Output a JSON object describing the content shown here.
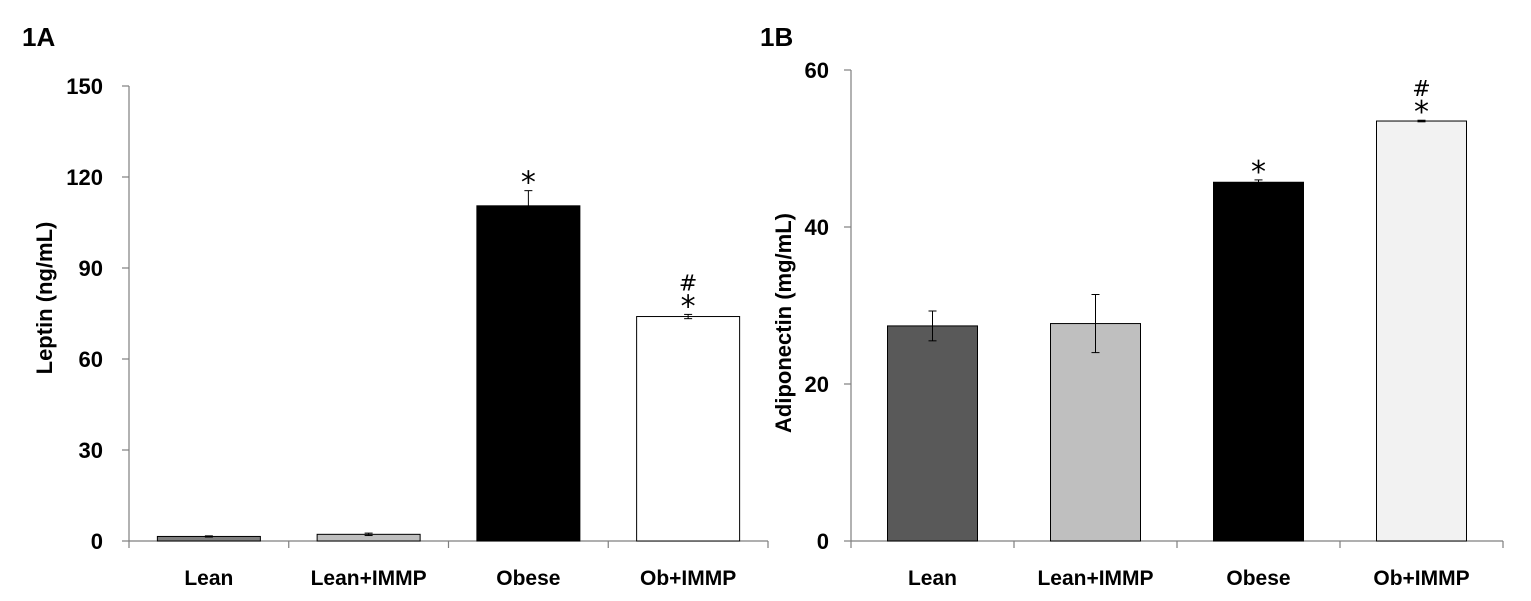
{
  "chart_data": [
    {
      "panel": "1A",
      "type": "bar",
      "ylabel": "Leptin (ng/mL)",
      "xlabel": "",
      "ylim": [
        0,
        150
      ],
      "yticks": [
        0,
        30,
        60,
        90,
        120,
        150
      ],
      "categories": [
        "Lean",
        "Lean+IMMP",
        "Obese",
        "Ob+IMMP"
      ],
      "values": [
        1.5,
        2.2,
        110.5,
        74.0
      ],
      "errors": [
        0.2,
        0.4,
        5.0,
        0.7
      ],
      "colors": [
        "#7f7f7f",
        "#bfbfbf",
        "#000000",
        "#ffffff"
      ],
      "annotations": [
        "",
        "",
        "*",
        "*#"
      ],
      "grid": false,
      "legend": "none"
    },
    {
      "panel": "1B",
      "type": "bar",
      "ylabel": "Adiponectin (mg/mL)",
      "xlabel": "",
      "ylim": [
        0,
        60
      ],
      "yticks": [
        0,
        20,
        40,
        60
      ],
      "categories": [
        "Lean",
        "Lean+IMMP",
        "Obese",
        "Ob+IMMP"
      ],
      "values": [
        27.4,
        27.7,
        45.7,
        53.5
      ],
      "errors": [
        1.9,
        3.7,
        0.3,
        0.1
      ],
      "colors": [
        "#595959",
        "#bfbfbf",
        "#000000",
        "#f2f2f2"
      ],
      "annotations": [
        "",
        "",
        "*",
        "*#"
      ],
      "grid": false,
      "legend": "none"
    }
  ]
}
